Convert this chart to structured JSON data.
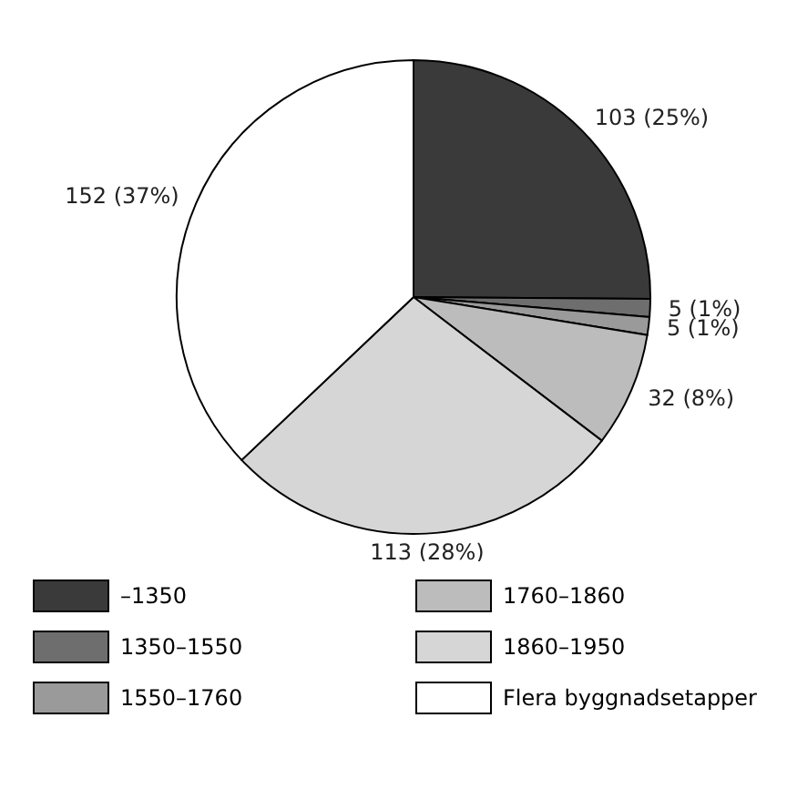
{
  "chart_data": {
    "type": "pie",
    "categories": [
      "–1350",
      "1350–1550",
      "1550–1760",
      "1760–1860",
      "1860–1950",
      "Flera byggnadsetapper"
    ],
    "values": [
      103,
      5,
      5,
      32,
      113,
      152
    ],
    "value_labels": [
      "103 (25%)",
      "5 (1%)",
      "5 (1%)",
      "32 (8%)",
      "113 (28%)",
      "152 (37%)"
    ],
    "colors": [
      "#3a3a3a",
      "#6e6e6e",
      "#9a9a9a",
      "#bcbcbc",
      "#d6d6d6",
      "#ffffff"
    ],
    "legend": "bottom"
  }
}
